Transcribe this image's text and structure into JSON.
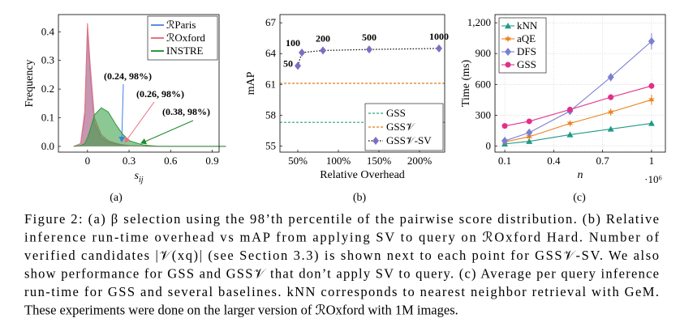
{
  "chart_data": [
    {
      "type": "area",
      "label": "(a)",
      "ylabel": "Frequency",
      "xlabel": {
        "main": "s",
        "sub": "ij"
      },
      "xlim": [
        -0.21,
        0.95
      ],
      "ylim": [
        -0.02,
        0.46
      ],
      "xticks": [
        0,
        0.3,
        0.6,
        0.9
      ],
      "yticks": [
        {
          "value": 0,
          "label": "0.0"
        },
        0.1,
        0.2,
        0.3,
        0.4
      ],
      "x": [
        -0.1,
        -0.05,
        -0.02,
        0,
        0.02,
        0.05,
        0.1,
        0.15,
        0.2,
        0.25,
        0.3,
        0.4,
        0.5,
        0.6,
        0.8,
        1.0
      ],
      "series": [
        {
          "name": "ℛParis",
          "color": "#5b8fe0",
          "values": [
            0,
            0.01,
            0.1,
            0.4,
            0.25,
            0.08,
            0.03,
            0.015,
            0.01,
            0.005,
            0.003,
            0.001,
            0,
            0,
            0,
            0
          ]
        },
        {
          "name": "ℛOxford",
          "color": "#e8737f",
          "values": [
            0,
            0.01,
            0.12,
            0.43,
            0.28,
            0.1,
            0.04,
            0.02,
            0.012,
            0.006,
            0.003,
            0.001,
            0,
            0,
            0,
            0
          ]
        },
        {
          "name": "INSTRE",
          "color": "#2e9a3a",
          "values": [
            0,
            0.002,
            0.01,
            0.03,
            0.06,
            0.11,
            0.135,
            0.12,
            0.08,
            0.045,
            0.02,
            0.005,
            0.001,
            0,
            0,
            0
          ]
        }
      ],
      "annotations": [
        {
          "text": "(0.24, 98%)",
          "color": "#3f7fe0"
        },
        {
          "text": "(0.26, 98%)",
          "color": "#e8737f"
        },
        {
          "text": "(0.38, 98%)",
          "color": "#1f8a2a"
        }
      ],
      "legend": "upper right",
      "grid": false
    },
    {
      "type": "scatter",
      "label": "(b)",
      "ylabel": "mAP",
      "xlabel": "Relative Overhead",
      "xlim": [
        28,
        231
      ],
      "ylim": [
        54.4,
        67.8
      ],
      "xticks": [
        {
          "value": 50,
          "label": "50%"
        },
        {
          "value": 100,
          "label": "100%"
        },
        {
          "value": 150,
          "label": "150%"
        },
        {
          "value": 200,
          "label": "200%"
        }
      ],
      "yticks": [
        55,
        58,
        61,
        64,
        67
      ],
      "series": [
        {
          "name": "GSS",
          "color": "#2aa37a",
          "value": 57.3
        },
        {
          "name": "GSS𝒱",
          "color": "#e07a1f",
          "value": 61.1
        },
        {
          "name": "GSS𝒱-SV",
          "color": "#7b6fc4",
          "x": [
            50,
            55,
            81,
            138,
            224
          ],
          "values": [
            62.8,
            64.1,
            64.3,
            64.4,
            64.5
          ],
          "candidates": [
            50,
            100,
            200,
            500,
            1000
          ]
        }
      ],
      "legend": "lower right",
      "grid": false
    },
    {
      "type": "line",
      "label": "(c)",
      "ylabel": "Time (ms)",
      "xlabel": "n",
      "x_multiplier": "·10⁶",
      "xlim": [
        0.04,
        1.085
      ],
      "ylim": [
        -60,
        1280
      ],
      "xticks": [
        0.1,
        0.4,
        0.7,
        1
      ],
      "yticks": [
        0,
        300,
        600,
        900,
        {
          "value": 1200,
          "label": "1,200"
        }
      ],
      "x": [
        0.1,
        0.25,
        0.5,
        0.75,
        1
      ],
      "series": [
        {
          "name": "kNN",
          "color": "#1f9a86",
          "marker": "triangle",
          "values": [
            20,
            45,
            110,
            165,
            220
          ],
          "errors": [
            5,
            5,
            10,
            12,
            15
          ]
        },
        {
          "name": "aQE",
          "color": "#e8821e",
          "marker": "star",
          "values": [
            40,
            90,
            220,
            330,
            450
          ],
          "errors": [
            5,
            10,
            15,
            35,
            50
          ]
        },
        {
          "name": "DFS",
          "color": "#7b7fd0",
          "marker": "diamond",
          "values": [
            50,
            130,
            340,
            670,
            1020
          ],
          "errors": [
            5,
            10,
            20,
            40,
            80
          ]
        },
        {
          "name": "GSS",
          "color": "#e0308a",
          "marker": "circle",
          "values": [
            195,
            240,
            355,
            475,
            585
          ],
          "errors": [
            10,
            15,
            20,
            30,
            30
          ]
        }
      ],
      "legend": "upper left",
      "grid": true
    }
  ],
  "caption": {
    "lines": [
      "Figure 2: (a) β selection using the 98’th percentile of the pairwise score distribution. (b) Relative",
      "inference run-time overhead vs mAP from applying SV to query on ℛOxford Hard. Number of",
      "verified candidates |𝒱(xq)| (see Section 3.3) is shown next to each point for GSS𝒱-SV. We also",
      "show performance for GSS and GSS𝒱 that don’t apply SV to query. (c) Average per query inference",
      "run-time for GSS and several baselines. kNN corresponds to nearest neighbor retrieval with GeM.",
      "These experiments were done on the larger version of ℛOxford with 1M images."
    ]
  }
}
